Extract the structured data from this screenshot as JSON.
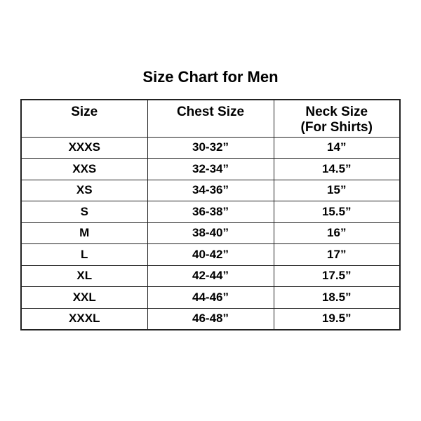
{
  "colors": {
    "background": "#ffffff",
    "text": "#000000",
    "border": "#222222"
  },
  "chart_data": {
    "type": "table",
    "title": "Size Chart for Men",
    "columns": [
      "Size",
      "Chest Size",
      "Neck Size (For Shirts)"
    ],
    "header_lines": [
      [
        "Size"
      ],
      [
        "Chest Size"
      ],
      [
        "Neck Size",
        "(For Shirts)"
      ]
    ],
    "rows": [
      [
        "XXXS",
        "30-32”",
        "14”"
      ],
      [
        "XXS",
        "32-34”",
        "14.5”"
      ],
      [
        "XS",
        "34-36”",
        "15”"
      ],
      [
        "S",
        "36-38”",
        "15.5”"
      ],
      [
        "M",
        "38-40”",
        "16”"
      ],
      [
        "L",
        "40-42”",
        "17”"
      ],
      [
        "XL",
        "42-44”",
        "17.5”"
      ],
      [
        "XXL",
        "44-46”",
        "18.5”"
      ],
      [
        "XXXL",
        "46-48”",
        "19.5”"
      ]
    ]
  }
}
